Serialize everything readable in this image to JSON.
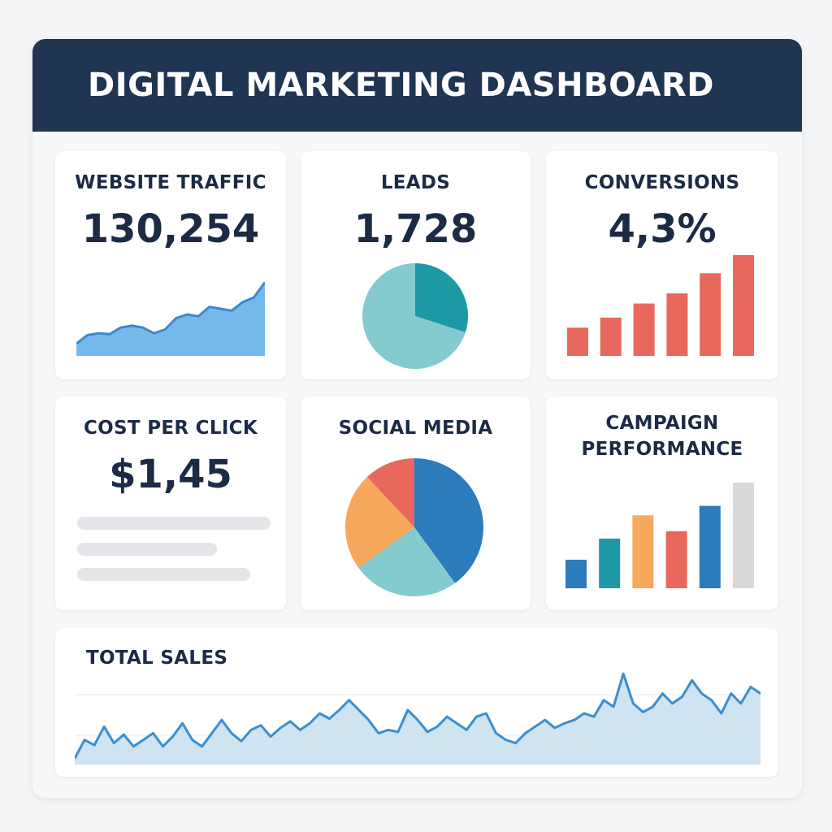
{
  "header": {
    "title": "DIGITAL MARKETING DASHBOARD"
  },
  "colors": {
    "header_bg": "#1f3552",
    "text": "#1c2b45",
    "blue_light": "#75b9eb",
    "blue_line": "#3c88cc",
    "teal_dark": "#1c99a5",
    "teal_light": "#84cbcf",
    "red": "#e8685e",
    "orange": "#f6a95c",
    "blue_dark": "#2c7cbc",
    "grey": "#d9d9d9",
    "sales_line": "#3a8fd1",
    "sales_fill": "#cfe3f0"
  },
  "cards": {
    "website_traffic": {
      "title": "WEBSITE TRAFFIC",
      "value": "130,254",
      "icon": "area-chart-icon"
    },
    "leads": {
      "title": "LEADS",
      "value": "1,728",
      "icon": "pie-chart-icon"
    },
    "conversions": {
      "title": "CONVERSIONS",
      "value": "4,3%",
      "icon": "bar-chart-icon"
    },
    "cost_per_click": {
      "title": "COST PER CLICK",
      "value": "$1,45",
      "icon": "text-lines-placeholder-icon"
    },
    "social_media": {
      "title": "SOCIAL MEDIA",
      "icon": "pie-chart-icon"
    },
    "campaign_performance": {
      "title_line1": "CAMPAIGN",
      "title_line2": "PERFORMANCE",
      "icon": "bar-chart-icon"
    },
    "total_sales": {
      "title": "TOTAL SALES",
      "icon": "line-chart-icon"
    }
  },
  "chart_data": [
    {
      "id": "website_traffic",
      "type": "area",
      "x": [
        0,
        1,
        2,
        3,
        4,
        5,
        6,
        7,
        8,
        9,
        10,
        11,
        12,
        13,
        14,
        15,
        16,
        17
      ],
      "values": [
        13,
        22,
        24,
        23,
        30,
        32,
        30,
        24,
        28,
        40,
        44,
        42,
        52,
        50,
        48,
        57,
        62,
        78
      ],
      "ylim": [
        0,
        100
      ]
    },
    {
      "id": "leads",
      "type": "pie",
      "series": [
        {
          "value": 30,
          "color": "#1c99a5"
        },
        {
          "value": 70,
          "color": "#84cbcf"
        }
      ]
    },
    {
      "id": "conversions",
      "type": "bar",
      "values": [
        28,
        38,
        52,
        62,
        82,
        100
      ],
      "color": "#e8685e",
      "ylim": [
        0,
        100
      ]
    },
    {
      "id": "social_media",
      "type": "pie",
      "series": [
        {
          "value": 40,
          "color": "#2c7cbc"
        },
        {
          "value": 25,
          "color": "#84cbcf"
        },
        {
          "value": 23,
          "color": "#f6a95c"
        },
        {
          "value": 12,
          "color": "#e8685e"
        }
      ]
    },
    {
      "id": "campaign_performance",
      "type": "bar",
      "values": [
        27,
        47,
        69,
        54,
        78,
        100
      ],
      "colors": [
        "#2c7cbc",
        "#1c99a5",
        "#f6a95c",
        "#e8685e",
        "#2c7cbc",
        "#d9d9d9"
      ],
      "ylim": [
        0,
        100
      ]
    },
    {
      "id": "total_sales",
      "type": "area",
      "values": [
        2,
        30,
        22,
        50,
        25,
        38,
        20,
        30,
        40,
        20,
        35,
        55,
        30,
        20,
        40,
        60,
        40,
        28,
        45,
        52,
        35,
        48,
        58,
        45,
        55,
        70,
        62,
        75,
        90,
        75,
        60,
        40,
        45,
        42,
        75,
        60,
        42,
        50,
        65,
        55,
        45,
        65,
        70,
        40,
        30,
        25,
        40,
        50,
        60,
        48,
        55,
        60,
        70,
        65,
        90,
        80,
        130,
        85,
        72,
        80,
        100,
        85,
        95,
        120,
        100,
        90,
        70,
        100,
        85,
        110,
        100
      ],
      "ylim": [
        0,
        140
      ]
    }
  ]
}
